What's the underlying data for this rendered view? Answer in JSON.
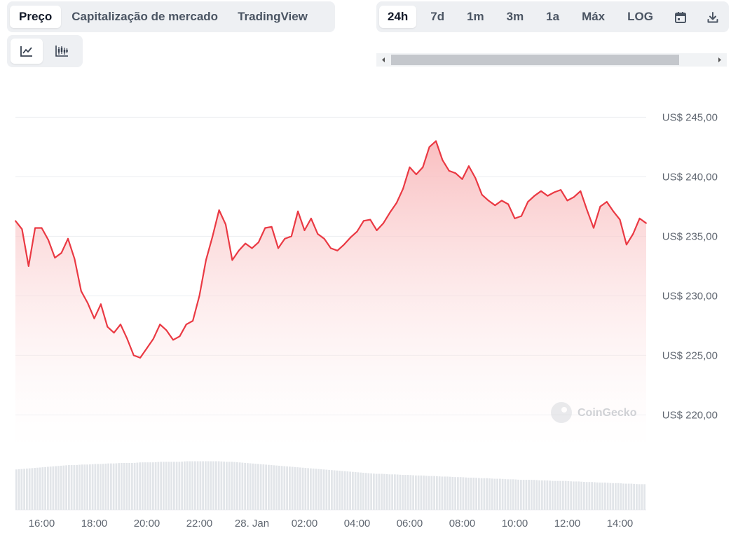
{
  "tabs": [
    {
      "label": "Preço",
      "active": true
    },
    {
      "label": "Capitalização de mercado",
      "active": false
    },
    {
      "label": "TradingView",
      "active": false
    }
  ],
  "ranges": [
    {
      "label": "24h",
      "active": true
    },
    {
      "label": "7d",
      "active": false
    },
    {
      "label": "1m",
      "active": false
    },
    {
      "label": "3m",
      "active": false
    },
    {
      "label": "1a",
      "active": false
    },
    {
      "label": "Máx",
      "active": false
    },
    {
      "label": "LOG",
      "active": false
    }
  ],
  "icons": {
    "calendar": "calendar-icon",
    "download": "download-icon",
    "line_chart": "line-chart-icon",
    "candlestick": "candlestick-chart-icon",
    "watermark": "coingecko-logo"
  },
  "colors": {
    "line": "#ea3943",
    "area_top": "#f8b3b5",
    "volume": "#e2e5e9",
    "grid": "#eceef1"
  },
  "chart_data": {
    "type": "area",
    "watermark": "CoinGecko",
    "y_tick_values": [
      220,
      225,
      230,
      235,
      240,
      245
    ],
    "y_tick_labels": [
      "US$ 220,00",
      "US$ 225,00",
      "US$ 230,00",
      "US$ 235,00",
      "US$ 240,00",
      "US$ 245,00"
    ],
    "ylim": [
      217.2,
      247.2
    ],
    "x_ticks": [
      "16:00",
      "18:00",
      "20:00",
      "22:00",
      "28. Jan",
      "02:00",
      "04:00",
      "06:00",
      "08:00",
      "10:00",
      "12:00",
      "14:00"
    ],
    "x_tick_hours": [
      16,
      18,
      20,
      22,
      24,
      26,
      28,
      30,
      32,
      34,
      36,
      38
    ],
    "x_range_hours": [
      15.0,
      39.0
    ],
    "x_hours": [
      15.0,
      15.25,
      15.5,
      15.75,
      16.0,
      16.25,
      16.5,
      16.75,
      17.0,
      17.25,
      17.5,
      17.75,
      18.0,
      18.25,
      18.5,
      18.75,
      19.0,
      19.25,
      19.5,
      19.75,
      20.0,
      20.25,
      20.5,
      20.75,
      21.0,
      21.25,
      21.5,
      21.75,
      22.0,
      22.25,
      22.5,
      22.75,
      23.0,
      23.25,
      23.5,
      23.75,
      24.0,
      24.25,
      24.5,
      24.75,
      25.0,
      25.25,
      25.5,
      25.75,
      26.0,
      26.25,
      26.5,
      26.75,
      27.0,
      27.25,
      27.5,
      27.75,
      28.0,
      28.25,
      28.5,
      28.75,
      29.0,
      29.25,
      29.5,
      29.75,
      30.0,
      30.25,
      30.5,
      30.75,
      31.0,
      31.25,
      31.5,
      31.75,
      32.0,
      32.25,
      32.5,
      32.75,
      33.0,
      33.25,
      33.5,
      33.75,
      34.0,
      34.25,
      34.5,
      34.75,
      35.0,
      35.25,
      35.5,
      35.75,
      36.0,
      36.25,
      36.5,
      36.75,
      37.0,
      37.25,
      37.5,
      37.75,
      38.0,
      38.25,
      38.5,
      38.75,
      39.0
    ],
    "prices": [
      236.3,
      235.6,
      232.5,
      235.7,
      235.7,
      234.7,
      233.2,
      233.6,
      234.8,
      233.1,
      230.4,
      229.4,
      228.1,
      229.3,
      227.4,
      226.9,
      227.6,
      226.4,
      225.0,
      224.8,
      225.6,
      226.4,
      227.6,
      227.1,
      226.3,
      226.6,
      227.6,
      227.9,
      230.0,
      233.0,
      235.0,
      237.2,
      236.0,
      233.0,
      233.8,
      234.4,
      234.0,
      234.5,
      235.7,
      235.8,
      234.0,
      234.8,
      235.0,
      237.1,
      235.5,
      236.5,
      235.2,
      234.8,
      234.0,
      233.8,
      234.3,
      234.9,
      235.4,
      236.3,
      236.4,
      235.5,
      236.1,
      237.0,
      237.8,
      239.0,
      240.8,
      240.2,
      240.8,
      242.5,
      243.0,
      241.4,
      240.5,
      240.3,
      239.8,
      240.9,
      239.9,
      238.5,
      238.0,
      237.6,
      238.0,
      237.7,
      236.5,
      236.7,
      237.9,
      238.4,
      238.8,
      238.4,
      238.7,
      238.9,
      238.0,
      238.3,
      238.8,
      237.2,
      235.7,
      237.5,
      237.9,
      237.1,
      236.4,
      234.3,
      235.2,
      236.5,
      236.1
    ],
    "volume_relative": [
      0.74,
      0.75,
      0.76,
      0.77,
      0.78,
      0.79,
      0.8,
      0.81,
      0.82,
      0.82,
      0.83,
      0.83,
      0.84,
      0.84,
      0.85,
      0.85,
      0.86,
      0.86,
      0.86,
      0.87,
      0.87,
      0.87,
      0.88,
      0.88,
      0.88,
      0.88,
      0.89,
      0.89,
      0.89,
      0.89,
      0.89,
      0.89,
      0.88,
      0.88,
      0.87,
      0.86,
      0.85,
      0.84,
      0.83,
      0.82,
      0.81,
      0.8,
      0.79,
      0.78,
      0.77,
      0.76,
      0.75,
      0.74,
      0.73,
      0.72,
      0.71,
      0.7,
      0.69,
      0.68,
      0.67,
      0.66,
      0.66,
      0.65,
      0.65,
      0.64,
      0.64,
      0.63,
      0.63,
      0.62,
      0.62,
      0.61,
      0.61,
      0.6,
      0.6,
      0.59,
      0.59,
      0.58,
      0.58,
      0.57,
      0.57,
      0.56,
      0.56,
      0.55,
      0.55,
      0.55,
      0.54,
      0.54,
      0.53,
      0.53,
      0.53,
      0.52,
      0.52,
      0.51,
      0.51,
      0.5,
      0.5,
      0.49,
      0.49,
      0.48,
      0.48,
      0.47,
      0.47
    ]
  }
}
